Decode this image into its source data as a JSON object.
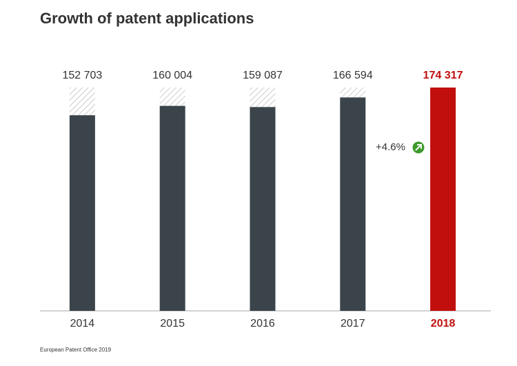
{
  "chart_data": {
    "type": "bar",
    "title": "Growth of patent applications",
    "categories": [
      "2014",
      "2015",
      "2016",
      "2017",
      "2018"
    ],
    "values": [
      152703,
      160004,
      159087,
      166594,
      174317
    ],
    "value_labels": [
      "152 703",
      "160 004",
      "159 087",
      "166 594",
      "174 317"
    ],
    "colors": [
      "#3a444a",
      "#3a444a",
      "#3a444a",
      "#3a444a",
      "#c00f0c"
    ],
    "annotation": "+4.6%",
    "source": "European Patent Office 2019"
  }
}
